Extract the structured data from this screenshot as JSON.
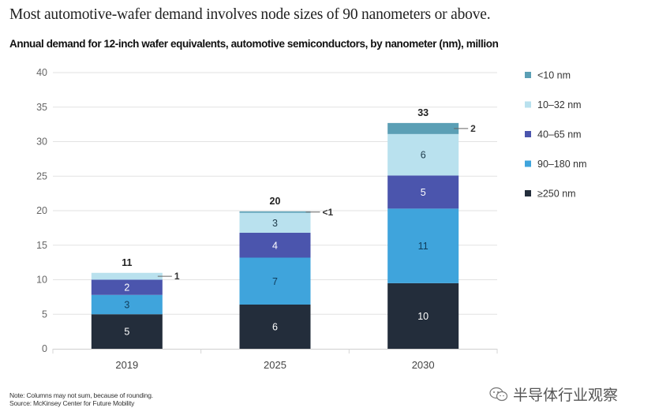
{
  "headline": "Most automotive-wafer demand involves node sizes of 90 nanometers or above.",
  "subtitle": "Annual demand for 12-inch wafer equivalents, automotive semiconductors, by nanometer (nm), million",
  "note": "Note: Columns may not sum, because of rounding.",
  "source": "Source: McKinsey Center for Future Mobility",
  "watermark": "半导体行业观察",
  "chart_data": {
    "type": "bar",
    "stacked": true,
    "title": "Annual demand for 12-inch wafer equivalents, automotive semiconductors, by nanometer (nm), million",
    "xlabel": "",
    "ylabel": "",
    "ylim": [
      0,
      40
    ],
    "yticks": [
      0,
      5,
      10,
      15,
      20,
      25,
      30,
      35,
      40
    ],
    "grid": true,
    "legend_position": "right",
    "categories": [
      "2019",
      "2025",
      "2030"
    ],
    "totals": [
      "11",
      "20",
      "33"
    ],
    "series": [
      {
        "name": "≥250 nm",
        "color": "#232d3b",
        "label_color": "#ffffff",
        "values": [
          5,
          6.4,
          9.5
        ],
        "labels": [
          "5",
          "6",
          "10"
        ]
      },
      {
        "name": "90–180 nm",
        "color": "#3fa4dc",
        "label_color": "#0f3d5c",
        "values": [
          2.8,
          6.8,
          10.8
        ],
        "labels": [
          "3",
          "7",
          "11"
        ]
      },
      {
        "name": "40–65 nm",
        "color": "#4b55ad",
        "label_color": "#ffffff",
        "values": [
          2.2,
          3.6,
          4.8
        ],
        "labels": [
          "2",
          "4",
          "5"
        ]
      },
      {
        "name": "10–32 nm",
        "color": "#b9e1ee",
        "label_color": "#1d3a4a",
        "values": [
          1,
          2.9,
          6.0
        ],
        "labels": [
          "1",
          "3",
          "6"
        ],
        "callout": [
          true,
          false,
          false
        ]
      },
      {
        "name": "<10 nm",
        "color": "#5b9fb5",
        "label_color": "#1d3a4a",
        "values": [
          0,
          0.2,
          1.6
        ],
        "labels": [
          "",
          "<1",
          "2"
        ],
        "callout": [
          false,
          true,
          true
        ]
      }
    ],
    "legend_order": [
      "<10 nm",
      "10–32 nm",
      "40–65 nm",
      "90–180 nm",
      "≥250 nm"
    ]
  }
}
